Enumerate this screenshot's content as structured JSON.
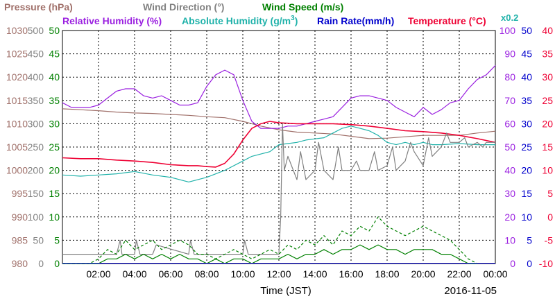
{
  "legend": {
    "pressure": "Pressure (hPa)",
    "wind_direction": "Wind Direction (°)",
    "wind_speed": "Wind Speed (m/s)",
    "relative_humidity": "Relative Humidity (%)",
    "absolute_humidity": "Absolute Humidity (g/m",
    "absolute_humidity_sup": "3",
    "absolute_humidity_close": ")",
    "rain_rate": "Rain Rate(mm/h)",
    "temperature": "Temperature (°C)",
    "absolute_humidity_scale": "x0.2"
  },
  "footer": {
    "xlabel": "Time (JST)",
    "date": "2016-11-05"
  },
  "colors": {
    "pressure": "#a0706a",
    "wind_direction": "#808080",
    "wind_speed": "#008000",
    "relative_humidity": "#9a1fe0",
    "absolute_humidity": "#20b2aa",
    "rain_rate": "#0000cc",
    "temperature": "#ee0033",
    "grid": "#000000"
  },
  "chart_data": {
    "type": "line",
    "grid": true,
    "x_ticks": [
      "02:00",
      "04:00",
      "06:00",
      "08:00",
      "10:00",
      "12:00",
      "14:00",
      "16:00",
      "18:00",
      "20:00",
      "22:00",
      "00:00"
    ],
    "x_range_hours": [
      0,
      24
    ],
    "axes": {
      "pressure": {
        "range": [
          980,
          1030
        ],
        "ticks": [
          "980",
          "985",
          "990",
          "995",
          "1000",
          "1005",
          "1010",
          "1015",
          "1020",
          "1025",
          "1030"
        ]
      },
      "wind_direction": {
        "range": [
          0,
          500
        ],
        "ticks": [
          "0",
          "50",
          "100",
          "150",
          "200",
          "250",
          "300",
          "350",
          "400",
          "450",
          "500"
        ]
      },
      "wind_speed": {
        "range": [
          0,
          50
        ],
        "ticks": [
          "0",
          "5",
          "10",
          "15",
          "20",
          "25",
          "30",
          "35",
          "40",
          "45",
          "50"
        ]
      },
      "relative_humidity": {
        "range": [
          0,
          100
        ],
        "ticks": [
          "0",
          "10",
          "20",
          "30",
          "40",
          "50",
          "60",
          "70",
          "80",
          "90",
          "100"
        ]
      },
      "rain_rate": {
        "range": [
          0,
          50
        ],
        "ticks": [
          "0",
          "5",
          "10",
          "15",
          "20",
          "25",
          "30",
          "35",
          "40",
          "45",
          "50"
        ]
      },
      "temperature": {
        "range": [
          -10,
          40
        ],
        "ticks": [
          "-10",
          "-5",
          "0",
          "5",
          "10",
          "15",
          "20",
          "25",
          "30",
          "35",
          "40"
        ]
      }
    },
    "series": [
      {
        "name": "Pressure (hPa)",
        "axis": "pressure",
        "x": [
          0,
          1,
          2,
          3,
          4,
          5,
          6,
          7,
          8,
          9,
          10,
          11,
          12,
          13,
          14,
          15,
          16,
          17,
          18,
          19,
          20,
          21,
          22,
          23,
          24
        ],
        "y": [
          1013.2,
          1013.0,
          1012.8,
          1012.5,
          1012.3,
          1012.2,
          1012.0,
          1011.8,
          1011.5,
          1011.3,
          1010.5,
          1009.5,
          1008.7,
          1008.2,
          1008.0,
          1007.8,
          1007.3,
          1006.8,
          1006.9,
          1007.2,
          1007.5,
          1007.5,
          1007.5,
          1008.0,
          1008.4
        ]
      },
      {
        "name": "Relative Humidity (%)",
        "axis": "relative_humidity",
        "x": [
          0,
          0.5,
          1,
          1.5,
          2,
          2.5,
          3,
          3.5,
          4,
          4.5,
          5,
          5.5,
          6,
          6.5,
          7,
          7.5,
          8,
          8.5,
          9,
          9.5,
          10,
          10.5,
          11,
          11.5,
          12,
          12.5,
          13,
          13.5,
          14,
          14.5,
          15,
          15.5,
          16,
          16.5,
          17,
          17.5,
          18,
          18.5,
          19,
          19.5,
          20,
          20.5,
          21,
          21.5,
          22,
          22.5,
          23,
          23.5,
          24
        ],
        "y": [
          69,
          67,
          67,
          67,
          68,
          71,
          74,
          75,
          75,
          72,
          71,
          72,
          70,
          68,
          68,
          69,
          76,
          81,
          83,
          81,
          70,
          61,
          58,
          58,
          58,
          59,
          59,
          60,
          61,
          62,
          63,
          67,
          71,
          72,
          72,
          71,
          70,
          67,
          65,
          63,
          67,
          64,
          66,
          69,
          70,
          75,
          79,
          81,
          85
        ]
      },
      {
        "name": "Absolute Humidity (g/m3) x0.2",
        "axis": "relative_humidity",
        "x": [
          0,
          1,
          2,
          3,
          4,
          5,
          6,
          7,
          8,
          9,
          10,
          10.5,
          11,
          11.5,
          12,
          12.5,
          13,
          13.5,
          14,
          14.5,
          15,
          15.5,
          16,
          16.5,
          17,
          17.5,
          18,
          18.5,
          19,
          19.5,
          20,
          20.5,
          21,
          22,
          23,
          24
        ],
        "y": [
          38,
          37.5,
          38,
          38.5,
          39.5,
          38,
          37,
          35,
          37,
          40,
          44,
          46,
          47,
          48,
          51,
          51.5,
          52,
          53,
          53.5,
          54,
          56,
          58,
          59,
          58,
          57,
          55,
          52,
          51,
          52,
          51,
          52,
          51,
          51,
          51.5,
          51,
          51
        ]
      },
      {
        "name": "Temperature (°C)",
        "axis": "temperature",
        "x": [
          0,
          1,
          2,
          3,
          4,
          5,
          6,
          7,
          7.5,
          8,
          8.5,
          9,
          9.5,
          10,
          10.5,
          11,
          11.5,
          12,
          12.5,
          13,
          14,
          15,
          16,
          17,
          18,
          19,
          20,
          21,
          22,
          23,
          24
        ],
        "y": [
          12.7,
          12.5,
          12.5,
          12.2,
          12.0,
          11.7,
          11.2,
          11.0,
          11.0,
          10.8,
          10.7,
          11.5,
          13.5,
          16.5,
          19.0,
          20.0,
          20.5,
          20.2,
          20.1,
          20.0,
          20.0,
          20.0,
          19.8,
          19.5,
          19.0,
          18.5,
          18.3,
          18.0,
          17.5,
          16.8,
          16.0
        ]
      },
      {
        "name": "Wind Direction (°)",
        "axis": "wind_direction",
        "x": [
          0,
          3,
          3.2,
          3.3,
          4,
          4.1,
          4.3,
          5,
          5.2,
          7,
          7.1,
          7.3,
          8,
          9,
          10,
          10.1,
          10.3,
          11,
          12,
          12.1,
          12.2,
          12.3,
          12.5,
          12.8,
          13,
          13.2,
          13.5,
          14,
          14.2,
          14.5,
          15,
          15.3,
          15.5,
          16,
          16.3,
          16.5,
          17,
          17.3,
          17.5,
          18,
          18.3,
          18.5,
          19,
          19.3,
          19.5,
          20,
          20.3,
          20.5,
          21,
          21.3,
          21.5,
          22,
          22.3,
          22.5,
          23,
          23.3,
          23.5,
          24
        ],
        "y": [
          20,
          20,
          50,
          20,
          20,
          50,
          20,
          20,
          40,
          20,
          50,
          20,
          20,
          20,
          20,
          50,
          20,
          20,
          20,
          100,
          300,
          200,
          230,
          200,
          180,
          240,
          180,
          200,
          260,
          200,
          180,
          250,
          200,
          200,
          220,
          200,
          200,
          240,
          200,
          210,
          250,
          200,
          220,
          260,
          240,
          210,
          270,
          230,
          250,
          280,
          260,
          260,
          270,
          250,
          260,
          250,
          260,
          260
        ]
      },
      {
        "name": "Wind Speed (m/s) gust",
        "axis": "wind_speed",
        "x": [
          0,
          1,
          1.5,
          2,
          2.5,
          3,
          3.5,
          4,
          4.5,
          5,
          5.5,
          6,
          6.5,
          7,
          7.5,
          8,
          8.5,
          9,
          9.5,
          10,
          10.5,
          11,
          11.5,
          12,
          12.5,
          13,
          13.5,
          14,
          14.5,
          15,
          15.5,
          16,
          16.5,
          17,
          17.5,
          18,
          18.5,
          19,
          19.5,
          20,
          20.5,
          21,
          21.5,
          22,
          22.5,
          23
        ],
        "y": [
          0,
          0,
          0,
          1,
          3,
          2,
          5,
          3,
          4,
          5,
          3,
          4,
          5,
          4,
          2,
          2,
          1,
          2,
          3,
          2,
          1,
          2,
          3,
          2,
          4,
          3,
          5,
          4,
          6,
          4,
          7,
          6,
          8,
          7,
          10,
          8,
          7,
          6,
          7,
          8,
          7,
          6,
          5,
          3,
          1,
          0
        ]
      },
      {
        "name": "Wind Speed (m/s) mean",
        "axis": "wind_speed",
        "x": [
          0,
          1,
          2,
          2.5,
          3,
          3.5,
          4,
          4.5,
          5,
          5.5,
          6,
          6.5,
          7,
          7.5,
          8,
          8.5,
          9,
          9.5,
          10,
          10.5,
          11,
          11.5,
          12,
          12.5,
          13,
          13.5,
          14,
          14.5,
          15,
          15.5,
          16,
          16.5,
          17,
          17.5,
          18,
          18.5,
          19,
          19.5,
          20,
          20.5,
          21,
          21.5,
          22,
          22.5,
          23
        ],
        "y": [
          0,
          0,
          0,
          1,
          1,
          2,
          1,
          2,
          1,
          2,
          1,
          2,
          1,
          1,
          0,
          1,
          0,
          1,
          1,
          0,
          1,
          1,
          1,
          2,
          1,
          2,
          2,
          3,
          2,
          3,
          3,
          4,
          3,
          4,
          3,
          3,
          2,
          3,
          3,
          3,
          2,
          2,
          1,
          0,
          0
        ]
      }
    ]
  }
}
